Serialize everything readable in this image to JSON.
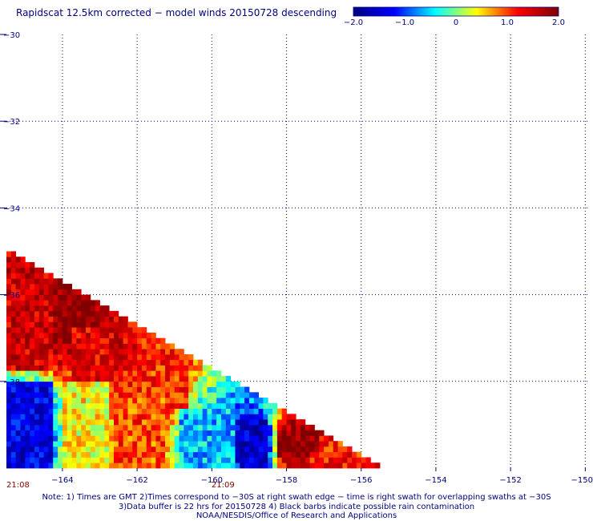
{
  "title": "Rapidscat 12.5km corrected − model winds 20150728 descending",
  "colorbar": {
    "min": -2.0,
    "max": 2.0,
    "tick_values": [
      -2.0,
      -1.0,
      0.0,
      1.0,
      2.0
    ],
    "tick_labels": [
      "−2.0",
      "−1.0",
      "0",
      "1.0",
      "2.0"
    ],
    "stops": [
      "#000080",
      "#0000ff",
      "#00ffff",
      "#ffff00",
      "#ff0000",
      "#800000"
    ]
  },
  "notes": [
    "Note: 1) Times are GMT 2)Times correspond to −30S at right swath edge − time is right swath for overlapping swaths at −30S",
    "3)Data buffer is 22 hrs for 20150728 4) Black barbs indicate possible rain contamination",
    "NOAA/NESDIS/Office of Research and Applications"
  ],
  "chart_data": {
    "type": "heatmap",
    "title": "Rapidscat 12.5km corrected − model winds 20150728 descending",
    "xlim": [
      -165.5,
      -149.9
    ],
    "ylim": [
      -40.0,
      -30.0
    ],
    "x_ticks": [
      -164,
      -162,
      -160,
      -158,
      -156,
      -154,
      -152,
      -150
    ],
    "x_tick_labels": [
      "−164",
      "−162",
      "−160",
      "−158",
      "−156",
      "−154",
      "−152",
      "−150"
    ],
    "y_ticks": [
      -30,
      -32,
      -34,
      -36,
      -38
    ],
    "y_tick_labels": [
      "−30",
      "−32",
      "−34",
      "−36",
      "−38"
    ],
    "grid": true,
    "time_labels": [
      {
        "x": -165.5,
        "label": "21:08"
      },
      {
        "x": -159.7,
        "label": "21:09"
      }
    ],
    "cell_size_deg": 0.125,
    "swath_edge_line": [
      [
        -165.5,
        -35.0
      ],
      [
        -155.6,
        -40.0
      ]
    ],
    "value_regions": [
      {
        "lon": [
          -165.5,
          -164.3
        ],
        "lat": [
          -37.8,
          -35.5
        ],
        "value": 1.5
      },
      {
        "lon": [
          -164.3,
          -163.2
        ],
        "lat": [
          -37.0,
          -36.1
        ],
        "value": 1.95
      },
      {
        "lon": [
          -163.8,
          -162.0
        ],
        "lat": [
          -38.0,
          -36.8
        ],
        "value": 1.4
      },
      {
        "lon": [
          -162.5,
          -160.6
        ],
        "lat": [
          -38.6,
          -37.7
        ],
        "value": 1.15
      },
      {
        "lon": [
          -165.5,
          -164.3
        ],
        "lat": [
          -40.0,
          -38.0
        ],
        "value": -1.4
      },
      {
        "lon": [
          -164.0,
          -162.8
        ],
        "lat": [
          -40.0,
          -38.0
        ],
        "value": 0.4
      },
      {
        "lon": [
          -162.6,
          -161.3
        ],
        "lat": [
          -40.0,
          -38.4
        ],
        "value": 1.0
      },
      {
        "lon": [
          -160.9,
          -159.4
        ],
        "lat": [
          -40.0,
          -38.6
        ],
        "value": -0.6
      },
      {
        "lon": [
          -159.2,
          -158.5
        ],
        "lat": [
          -40.0,
          -38.9
        ],
        "value": -1.5
      },
      {
        "lon": [
          -158.2,
          -157.3
        ],
        "lat": [
          -39.8,
          -39.1
        ],
        "value": 1.9
      },
      {
        "lon": [
          -157.4,
          -156.0
        ],
        "lat": [
          -40.0,
          -39.6
        ],
        "value": 1.2
      }
    ]
  }
}
